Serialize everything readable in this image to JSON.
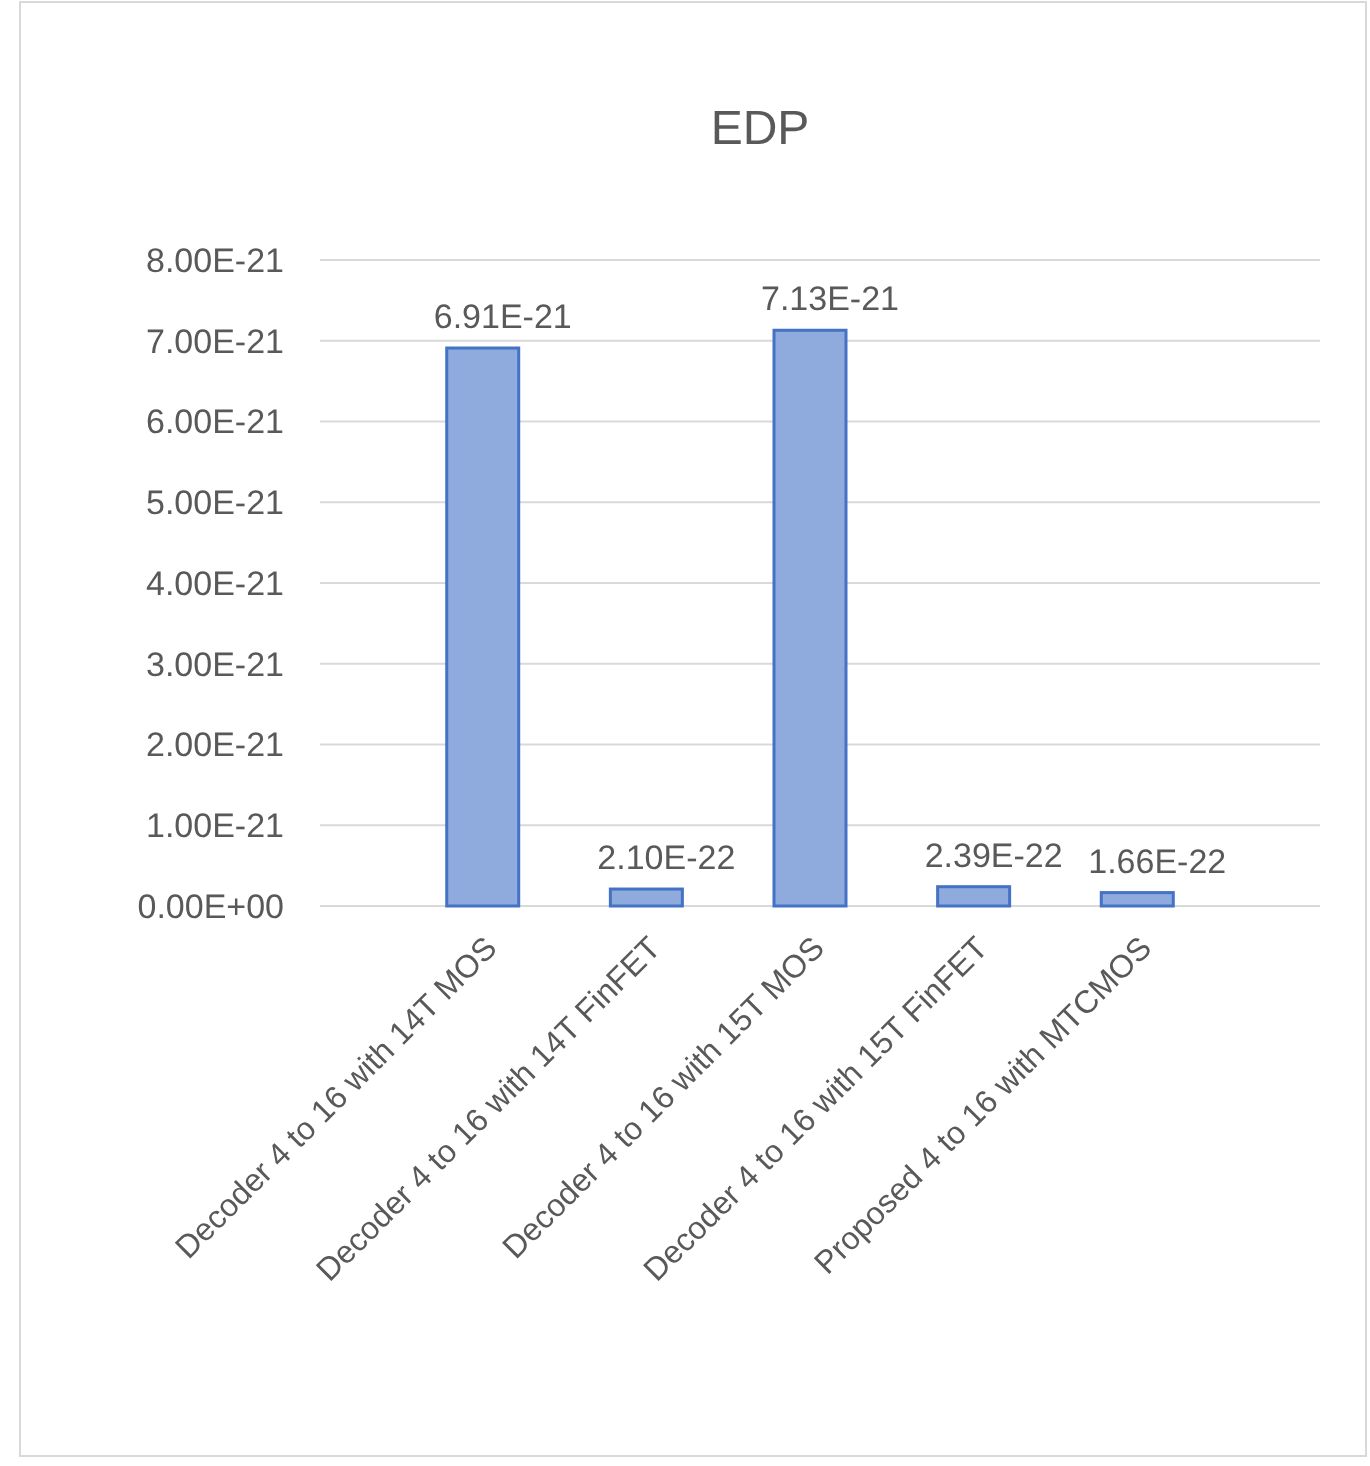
{
  "chart_data": {
    "type": "bar",
    "title": "EDP",
    "categories": [
      "Decoder 4 to 16 with 14T MOS",
      "Decoder 4 to 16 with 14T FinFET",
      "Decoder 4 to 16 with 15T MOS",
      "Decoder 4 to 16 with 15T FinFET",
      "Proposed 4 to 16 with MTCMOS"
    ],
    "values": [
      6.91e-21,
      2.1e-22,
      7.13e-21,
      2.39e-22,
      1.66e-22
    ],
    "value_labels": [
      "6.91E-21",
      "2.10E-22",
      "7.13E-21",
      "2.39E-22",
      "1.66E-22"
    ],
    "color": "#8faadc",
    "ylim": [
      0,
      8e-21
    ],
    "yticks": [
      {
        "value": 0,
        "label": "0.00E+00"
      },
      {
        "value": 1e-21,
        "label": "1.00E-21"
      },
      {
        "value": 2e-21,
        "label": "2.00E-21"
      },
      {
        "value": 3e-21,
        "label": "3.00E-21"
      },
      {
        "value": 4e-21,
        "label": "4.00E-21"
      },
      {
        "value": 5e-21,
        "label": "5.00E-21"
      },
      {
        "value": 6e-21,
        "label": "6.00E-21"
      },
      {
        "value": 7e-21,
        "label": "7.00E-21"
      },
      {
        "value": 8e-21,
        "label": "8.00E-21"
      }
    ],
    "grid": true
  }
}
